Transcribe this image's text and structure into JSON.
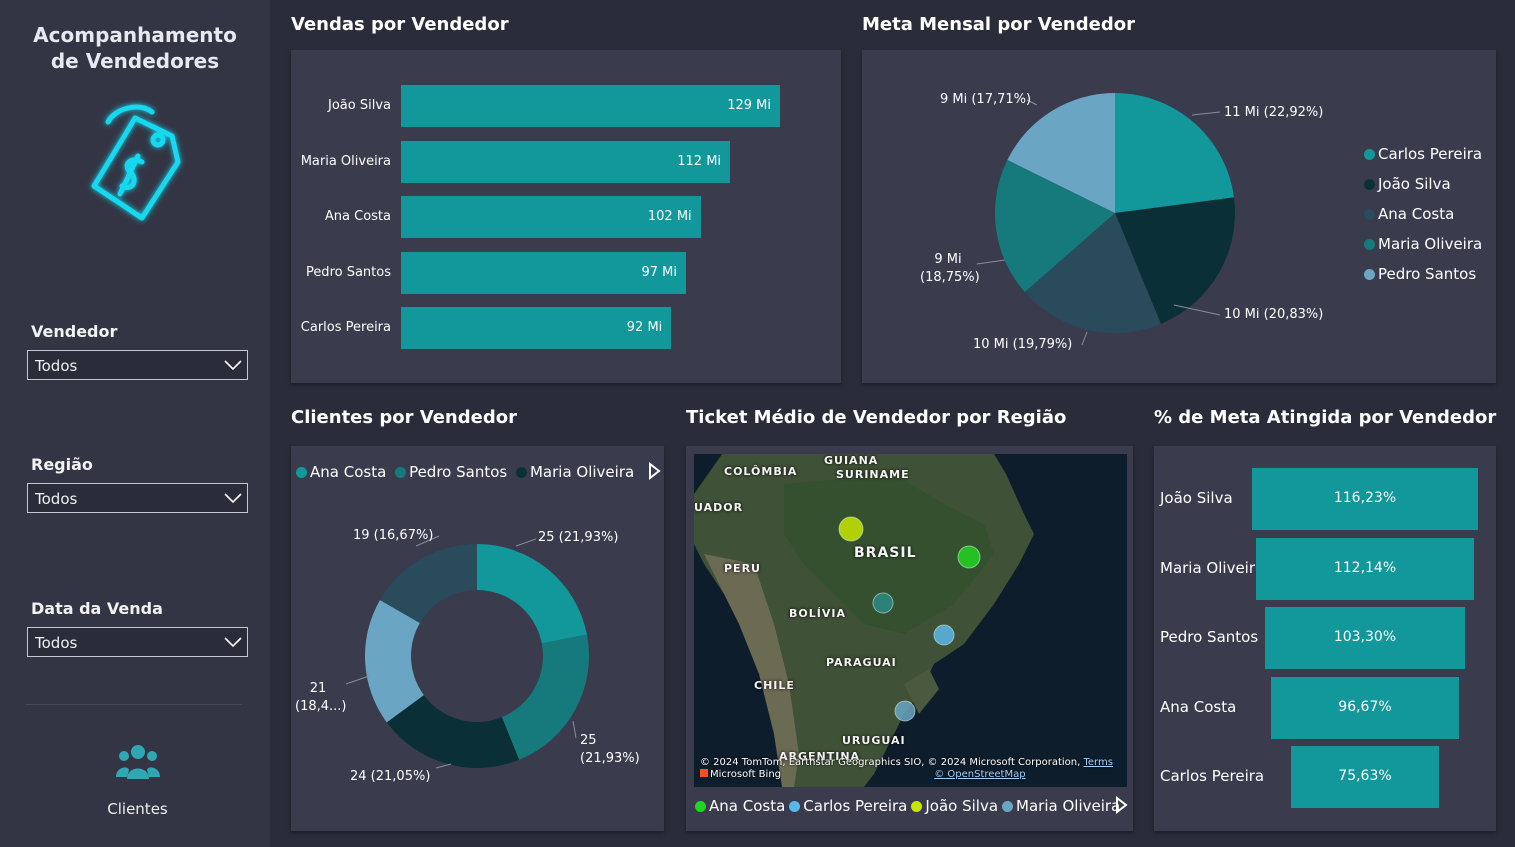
{
  "sidebar": {
    "title_line1": "Acompanhamento",
    "title_line2": "de Vendedores",
    "filters": [
      {
        "label": "Vendedor",
        "value": "Todos"
      },
      {
        "label": "Região",
        "value": "Todos"
      },
      {
        "label": "Data da Venda",
        "value": "Todos"
      }
    ],
    "nav_clients_label": "Clientes"
  },
  "colors": {
    "teal": "#12979b",
    "dark_teal": "#0b2f36",
    "slate": "#2a4b5c",
    "mid_teal": "#167a7c",
    "light_blue": "#6aa6c4"
  },
  "sales_chart": {
    "title": "Vendas por Vendedor",
    "chart_data": {
      "type": "bar",
      "categories": [
        "João Silva",
        "Maria Oliveira",
        "Ana Costa",
        "Pedro Santos",
        "Carlos Pereira"
      ],
      "values": [
        129,
        112,
        102,
        97,
        92
      ],
      "value_labels": [
        "129 Mi",
        "112 Mi",
        "102 Mi",
        "97 Mi",
        "92 Mi"
      ]
    }
  },
  "goal_chart": {
    "title": "Meta Mensal por Vendedor",
    "chart_data": {
      "type": "pie",
      "slices": [
        {
          "name": "Carlos Pereira",
          "value": 22.92,
          "label": "11 Mi (22,92%)",
          "color": "#12979b"
        },
        {
          "name": "João Silva",
          "value": 20.83,
          "label": "10 Mi (20,83%)",
          "color": "#0b2f36"
        },
        {
          "name": "Ana Costa",
          "value": 19.79,
          "label": "10 Mi (19,79%)",
          "color": "#2a4b5c"
        },
        {
          "name": "Maria Oliveira",
          "value": 18.75,
          "label_line1": "9 Mi",
          "label_line2": "(18,75%)",
          "color": "#167a7c"
        },
        {
          "name": "Pedro Santos",
          "value": 17.71,
          "label": "9 Mi (17,71%)",
          "color": "#6aa6c4"
        }
      ],
      "legend": [
        "Carlos Pereira",
        "João Silva",
        "Ana Costa",
        "Maria Oliveira",
        "Pedro Santos"
      ]
    }
  },
  "clients_chart": {
    "title": "Clientes por Vendedor",
    "legend": [
      "Ana Costa",
      "Pedro Santos",
      "Maria Oliveira"
    ],
    "chart_data": {
      "type": "pie",
      "slices": [
        {
          "value": 21.93,
          "label": "25 (21,93%)",
          "color": "#12979b"
        },
        {
          "value": 21.93,
          "label_line1": "25",
          "label_line2": "(21,93%)",
          "color": "#167a7c"
        },
        {
          "value": 21.05,
          "label": "24 (21,05%)",
          "color": "#0b2f36"
        },
        {
          "value": 18.42,
          "label_line1": "21",
          "label_line2": "(18,4...)",
          "color": "#6aa6c4"
        },
        {
          "value": 16.67,
          "label": "19 (16,67%)",
          "color": "#2a4b5c"
        }
      ]
    }
  },
  "ticket_map": {
    "title": "Ticket Médio de Vendedor por Região",
    "places": [
      "GUIANA",
      "SURINAME",
      "COLÔMBIA",
      "UADOR",
      "BRASIL",
      "PERU",
      "BOLÍVIA",
      "PARAGUAI",
      "CHILE",
      "URUGUAI",
      "ARGENTINA"
    ],
    "credit": "© 2024 TomTom, Earthstar Geographics SIO, © 2024 Microsoft Corporation,",
    "terms": "Terms",
    "osm": "© OpenStreetMap",
    "bing": "Microsoft Bing",
    "legend": [
      {
        "name": "Ana Costa",
        "color": "#22d422"
      },
      {
        "name": "Carlos Pereira",
        "color": "#5ab8e8"
      },
      {
        "name": "João Silva",
        "color": "#c8e600"
      },
      {
        "name": "Maria Oliveira",
        "color": "#6aa6c4"
      }
    ]
  },
  "pct_chart": {
    "title": "% de Meta Atingida por Vendedor",
    "chart_data": {
      "type": "bar",
      "categories": [
        "João Silva",
        "Maria Oliveira",
        "Pedro Santos",
        "Ana Costa",
        "Carlos Pereira"
      ],
      "values": [
        116.23,
        112.14,
        103.3,
        96.67,
        75.63
      ],
      "value_labels": [
        "116,23%",
        "112,14%",
        "103,30%",
        "96,67%",
        "75,63%"
      ]
    }
  }
}
